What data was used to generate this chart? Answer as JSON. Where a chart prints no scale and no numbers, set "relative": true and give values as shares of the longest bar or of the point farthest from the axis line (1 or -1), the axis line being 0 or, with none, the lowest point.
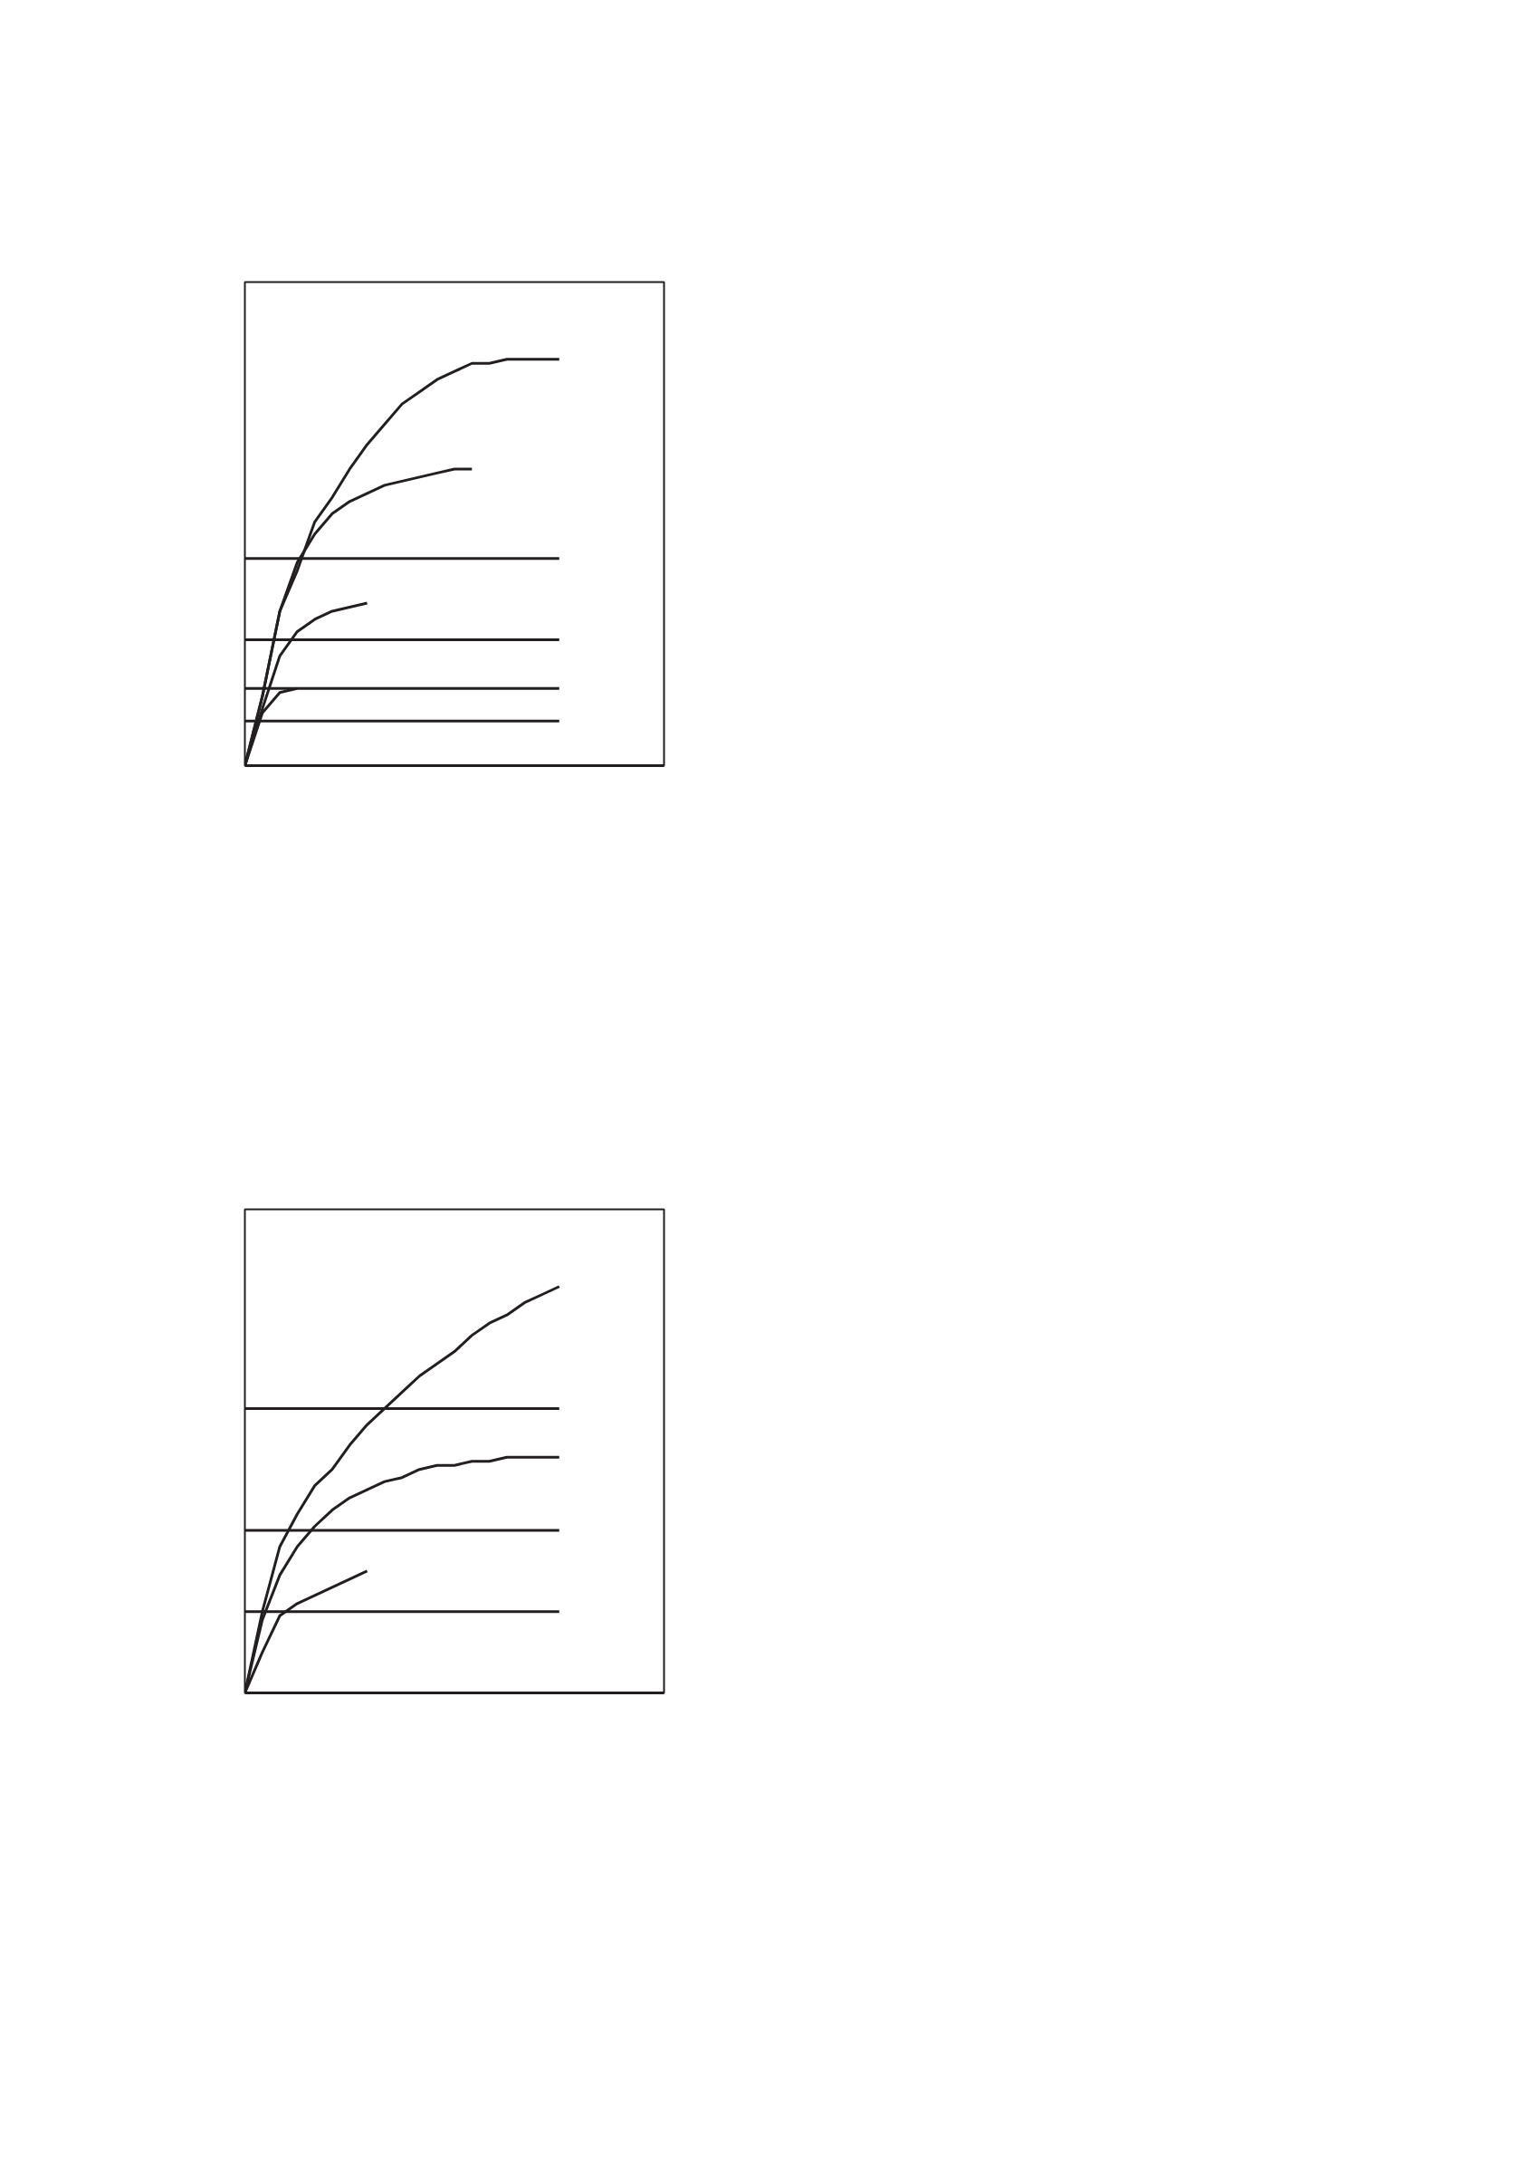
{
  "chart_data": [
    {
      "type": "line",
      "relative": true,
      "grid": false,
      "categories": [
        null,
        null,
        null,
        null,
        null,
        null,
        null,
        null,
        null,
        null,
        null,
        null,
        null,
        null,
        null,
        null,
        null,
        null,
        null,
        null,
        null,
        null,
        null,
        null,
        null
      ],
      "series": [
        {
          "color": "#231f20",
          "values": [
            0,
            0.17,
            0.38,
            0.48,
            0.6,
            0.66,
            0.73,
            0.79,
            0.84,
            0.89,
            0.92,
            0.95,
            0.97,
            0.99,
            0.99,
            1,
            1,
            1,
            1,
            null,
            null,
            null,
            null,
            null,
            null
          ]
        },
        {
          "color": "#231f20",
          "values": [
            0,
            0.17,
            0.38,
            0.5,
            0.57,
            0.62,
            0.65,
            0.67,
            0.69,
            0.7,
            0.71,
            0.72,
            0.73,
            0.73,
            null,
            null,
            null,
            null,
            null,
            null,
            null,
            null,
            null,
            null,
            null
          ]
        },
        {
          "color": "#231f20",
          "values": [
            0,
            0.14,
            0.27,
            0.33,
            0.36,
            0.38,
            0.39,
            0.4,
            null,
            null,
            null,
            null,
            null,
            null,
            null,
            null,
            null,
            null,
            null,
            null,
            null,
            null,
            null,
            null,
            null
          ]
        },
        {
          "color": "#231f20",
          "values": [
            0,
            0.13,
            0.18,
            0.19,
            null,
            null,
            null,
            null,
            null,
            null,
            null,
            null,
            null,
            null,
            null,
            null,
            null,
            null,
            null,
            null,
            null,
            null,
            null,
            null,
            null
          ]
        },
        {
          "color": "#231f20",
          "values": [
            0.51,
            0.51,
            0.51,
            0.51,
            0.51,
            0.51,
            0.51,
            0.51,
            0.51,
            0.51,
            0.51,
            0.51,
            0.51,
            0.51,
            0.51,
            0.51,
            0.51,
            0.51,
            0.51,
            null,
            null,
            null,
            null,
            null,
            null
          ]
        },
        {
          "color": "#231f20",
          "values": [
            0.31,
            0.31,
            0.31,
            0.31,
            0.31,
            0.31,
            0.31,
            0.31,
            0.31,
            0.31,
            0.31,
            0.31,
            0.31,
            0.31,
            0.31,
            0.31,
            0.31,
            0.31,
            0.31,
            null,
            null,
            null,
            null,
            null,
            null
          ]
        },
        {
          "color": "#231f20",
          "values": [
            0.19,
            0.19,
            0.19,
            0.19,
            0.19,
            0.19,
            0.19,
            0.19,
            0.19,
            0.19,
            0.19,
            0.19,
            0.19,
            0.19,
            0.19,
            0.19,
            0.19,
            0.19,
            0.19,
            null,
            null,
            null,
            null,
            null,
            null
          ]
        },
        {
          "color": "#231f20",
          "values": [
            0.11,
            0.11,
            0.11,
            0.11,
            0.11,
            0.11,
            0.11,
            0.11,
            0.11,
            0.11,
            0.11,
            0.11,
            0.11,
            0.11,
            0.11,
            0.11,
            0.11,
            0.11,
            0.11,
            null,
            null,
            null,
            null,
            null,
            null
          ]
        }
      ]
    },
    {
      "type": "line",
      "relative": true,
      "grid": false,
      "categories": [
        null,
        null,
        null,
        null,
        null,
        null,
        null,
        null,
        null,
        null,
        null,
        null,
        null,
        null,
        null,
        null,
        null,
        null,
        null,
        null,
        null,
        null,
        null,
        null,
        null
      ],
      "series": [
        {
          "color": "#231f20",
          "values": [
            0,
            0.2,
            0.36,
            0.44,
            0.51,
            0.55,
            0.61,
            0.66,
            0.7,
            0.74,
            0.78,
            0.81,
            0.84,
            0.88,
            0.91,
            0.93,
            0.96,
            0.98,
            1,
            null,
            null,
            null,
            null,
            null,
            null
          ]
        },
        {
          "color": "#231f20",
          "values": [
            0,
            0.18,
            0.29,
            0.36,
            0.41,
            0.45,
            0.48,
            0.5,
            0.52,
            0.53,
            0.55,
            0.56,
            0.56,
            0.57,
            0.57,
            0.58,
            0.58,
            0.58,
            0.58,
            null,
            null,
            null,
            null,
            null,
            null
          ]
        },
        {
          "color": "#231f20",
          "values": [
            0,
            0.1,
            0.19,
            0.22,
            0.24,
            0.26,
            0.28,
            0.3,
            null,
            null,
            null,
            null,
            null,
            null,
            null,
            null,
            null,
            null,
            null,
            null,
            null,
            null,
            null,
            null,
            null
          ]
        },
        {
          "color": "#231f20",
          "values": [
            0.7,
            0.7,
            0.7,
            0.7,
            0.7,
            0.7,
            0.7,
            0.7,
            0.7,
            0.7,
            0.7,
            0.7,
            0.7,
            0.7,
            0.7,
            0.7,
            0.7,
            0.7,
            0.7,
            null,
            null,
            null,
            null,
            null,
            null
          ]
        },
        {
          "color": "#231f20",
          "values": [
            0.4,
            0.4,
            0.4,
            0.4,
            0.4,
            0.4,
            0.4,
            0.4,
            0.4,
            0.4,
            0.4,
            0.4,
            0.4,
            0.4,
            0.4,
            0.4,
            0.4,
            0.4,
            0.4,
            null,
            null,
            null,
            null,
            null,
            null
          ]
        },
        {
          "color": "#231f20",
          "values": [
            0.2,
            0.2,
            0.2,
            0.2,
            0.2,
            0.2,
            0.2,
            0.2,
            0.2,
            0.2,
            0.2,
            0.2,
            0.2,
            0.2,
            0.2,
            0.2,
            0.2,
            0.2,
            0.2,
            null,
            null,
            null,
            null,
            null,
            null
          ]
        }
      ]
    }
  ]
}
